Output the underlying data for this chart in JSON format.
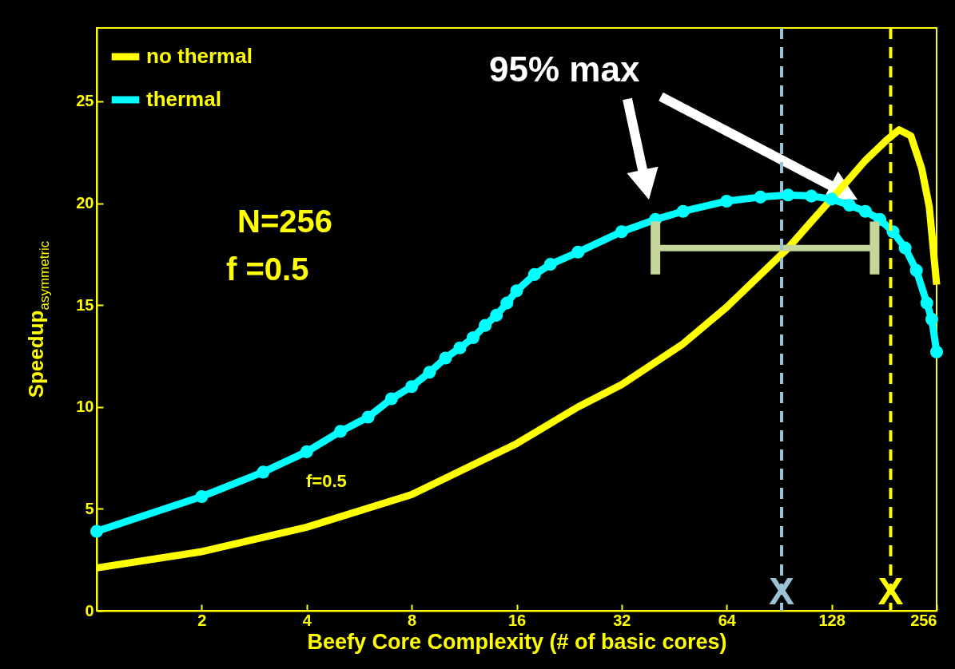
{
  "chart_data": {
    "type": "line",
    "xlabel": "Beefy Core Complexity (# of basic cores)",
    "ylabel": "Speedup$_{asymmetric}$",
    "log": "x",
    "xlim": [
      1,
      256
    ],
    "xticks": [
      2,
      4,
      8,
      16,
      32,
      64,
      128,
      256
    ],
    "ylim": [
      0,
      28.6
    ],
    "yticks": [
      0,
      5,
      10,
      15,
      20,
      25
    ],
    "grid": false,
    "legend": "top left",
    "series": [
      {
        "name": "no thermal",
        "color": "#ffff00",
        "marker": "none",
        "x": [
          1,
          2,
          4,
          8,
          16,
          24,
          32,
          48,
          64,
          96,
          112,
          144,
          160,
          184,
          200,
          216,
          232,
          244,
          256
        ],
        "values": [
          2.1,
          2.9,
          4.1,
          5.7,
          8.2,
          10.0,
          11.1,
          13.1,
          14.9,
          17.8,
          19.1,
          21.2,
          22.1,
          23.1,
          23.6,
          23.3,
          21.7,
          19.8,
          16.0
        ]
      },
      {
        "name": "thermal",
        "color": "#00ffff",
        "marker": "circle",
        "x": [
          1,
          2,
          3,
          4,
          5,
          6,
          7,
          8,
          9,
          10,
          11,
          12,
          13,
          14,
          15,
          16,
          18,
          20,
          24,
          32,
          40,
          48,
          64,
          80,
          96,
          112,
          128,
          144,
          160,
          176,
          192,
          208,
          224,
          240,
          248,
          256
        ],
        "values": [
          3.9,
          5.6,
          6.8,
          7.8,
          8.8,
          9.5,
          10.4,
          11.0,
          11.7,
          12.4,
          12.9,
          13.4,
          14.0,
          14.5,
          15.1,
          15.7,
          16.5,
          17.0,
          17.6,
          18.6,
          19.2,
          19.6,
          20.1,
          20.3,
          20.4,
          20.35,
          20.2,
          19.9,
          19.6,
          19.2,
          18.6,
          17.8,
          16.7,
          15.1,
          14.3,
          12.7
        ]
      },
      {
        "type": "line",
        "color": "#c5d69b",
        "marker": "none",
        "x": [
          40,
          170
        ],
        "values": [
          17.8,
          17.8
        ],
        "errors": [
          1.3,
          1.3
        ]
      }
    ],
    "ref_lines": [
      {
        "axis": "x",
        "value": 92,
        "label": "X",
        "color": "#9cc3d5",
        "line_style": "dashed"
      },
      {
        "axis": "x",
        "value": 189,
        "label": "X",
        "color": "#ffff00",
        "line_style": "dashed"
      }
    ],
    "annotations": [
      "95% max",
      "N=256",
      "f =0.5",
      "f=0.5"
    ]
  }
}
